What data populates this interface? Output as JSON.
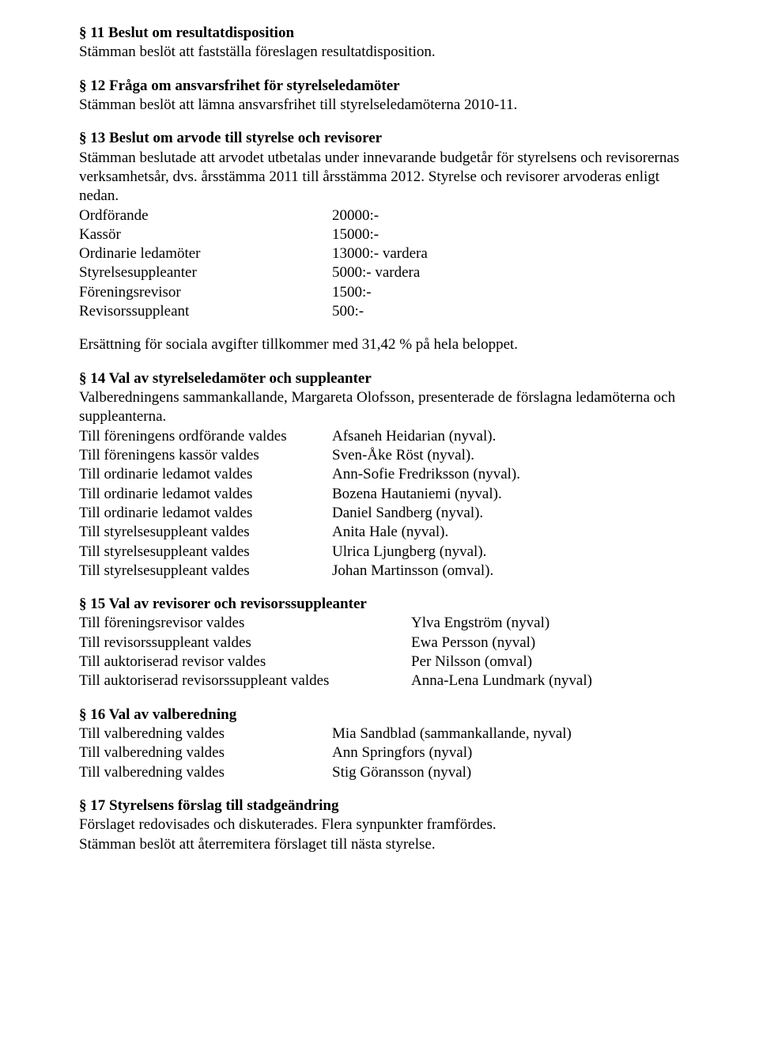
{
  "sections": {
    "s11": {
      "heading": "§ 11 Beslut om resultatdisposition",
      "body": "Stämman beslöt att fastställa föreslagen resultatdisposition."
    },
    "s12": {
      "heading": "§ 12 Fråga om ansvarsfrihet för styrelseledamöter",
      "body": "Stämman beslöt att lämna ansvarsfrihet till styrelseledamöterna 2010-11."
    },
    "s13": {
      "heading": "§ 13 Beslut om arvode till styrelse och revisorer",
      "body": "Stämman beslutade att arvodet utbetalas under innevarande budgetår för styrelsens och revisorernas verksamhetsår, dvs. årsstämma 2011 till årsstämma 2012. Styrelse och revisorer arvoderas enligt nedan.",
      "rows": [
        {
          "label": "Ordförande",
          "value": "20000:-"
        },
        {
          "label": "Kassör",
          "value": "15000:-"
        },
        {
          "label": "Ordinarie ledamöter",
          "value": "13000:- vardera"
        },
        {
          "label": "Styrelsesuppleanter",
          "value": "5000:- vardera"
        },
        {
          "label": "Föreningsrevisor",
          "value": "1500:-"
        },
        {
          "label": "Revisorssuppleant",
          "value": "500:-"
        }
      ],
      "footer": "Ersättning för sociala avgifter tillkommer med 31,42 % på hela beloppet."
    },
    "s14": {
      "heading": "§ 14 Val av styrelseledamöter och suppleanter",
      "intro": "Valberedningens sammankallande, Margareta Olofsson, presenterade de förslagna ledamöterna och suppleanterna.",
      "rows": [
        {
          "label": "Till föreningens ordförande valdes",
          "value": "Afsaneh Heidarian (nyval)."
        },
        {
          "label": "Till föreningens kassör valdes",
          "value": "Sven-Åke Röst (nyval)."
        },
        {
          "label": "Till ordinarie ledamot valdes",
          "value": "Ann-Sofie Fredriksson (nyval)."
        },
        {
          "label": "Till ordinarie ledamot valdes",
          "value": "Bozena Hautaniemi (nyval)."
        },
        {
          "label": "Till ordinarie ledamot valdes",
          "value": "Daniel Sandberg (nyval)."
        },
        {
          "label": "Till styrelsesuppleant valdes",
          "value": "Anita Hale (nyval)."
        },
        {
          "label": "Till styrelsesuppleant valdes",
          "value": "Ulrica Ljungberg (nyval)."
        },
        {
          "label": "Till styrelsesuppleant valdes",
          "value": "Johan Martinsson (omval)."
        }
      ]
    },
    "s15": {
      "heading": "§ 15 Val av revisorer och revisorssuppleanter",
      "rows": [
        {
          "label": "Till föreningsrevisor valdes",
          "value": "Ylva Engström (nyval)"
        },
        {
          "label": "Till revisorssuppleant valdes",
          "value": "Ewa Persson (nyval)"
        },
        {
          "label": "Till auktoriserad revisor valdes",
          "value": "Per Nilsson (omval)"
        },
        {
          "label": "Till auktoriserad revisorssuppleant valdes",
          "value": "Anna-Lena Lundmark (nyval)"
        }
      ]
    },
    "s16": {
      "heading": "§ 16 Val av valberedning",
      "rows": [
        {
          "label": "Till valberedning valdes",
          "value": "Mia Sandblad (sammankallande, nyval)"
        },
        {
          "label": "Till valberedning valdes",
          "value": "Ann Springfors (nyval)"
        },
        {
          "label": "Till valberedning valdes",
          "value": "Stig Göransson (nyval)"
        }
      ]
    },
    "s17": {
      "heading": "§ 17 Styrelsens förslag till stadgeändring",
      "line1": "Förslaget redovisades och diskuterades. Flera synpunkter framfördes.",
      "line2": "Stämman beslöt att återremitera förslaget till nästa styrelse."
    }
  }
}
